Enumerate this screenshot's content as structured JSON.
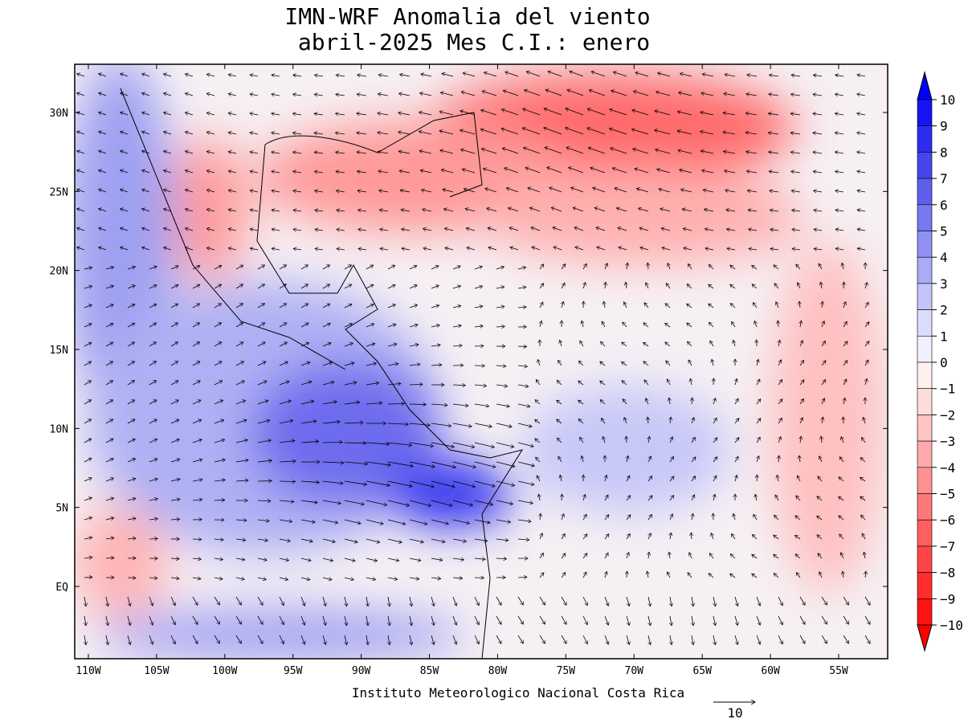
{
  "title": [
    "IMN-WRF Anomalia del viento",
    "abril-2025 Mes C.I.: enero"
  ],
  "map": {
    "lon_ticks": [
      {
        "value": -110,
        "label": "110W"
      },
      {
        "value": -105,
        "label": "105W"
      },
      {
        "value": -100,
        "label": "100W"
      },
      {
        "value": -95,
        "label": "95W"
      },
      {
        "value": -90,
        "label": "90W"
      },
      {
        "value": -85,
        "label": "85W"
      },
      {
        "value": -80,
        "label": "80W"
      },
      {
        "value": -75,
        "label": "75W"
      },
      {
        "value": -70,
        "label": "70W"
      },
      {
        "value": -65,
        "label": "65W"
      },
      {
        "value": -60,
        "label": "60W"
      },
      {
        "value": -55,
        "label": "55W"
      }
    ],
    "lat_ticks": [
      {
        "value": 30,
        "label": "30N"
      },
      {
        "value": 25,
        "label": "25N"
      },
      {
        "value": 20,
        "label": "20N"
      },
      {
        "value": 15,
        "label": "15N"
      },
      {
        "value": 10,
        "label": "10N"
      },
      {
        "value": 5,
        "label": "5N"
      },
      {
        "value": 0,
        "label": "EQ"
      }
    ]
  },
  "colorbar": {
    "ticks": [
      {
        "value": 10,
        "label": "10"
      },
      {
        "value": 9,
        "label": "9"
      },
      {
        "value": 8,
        "label": "8"
      },
      {
        "value": 7,
        "label": "7"
      },
      {
        "value": 6,
        "label": "6"
      },
      {
        "value": 5,
        "label": "5"
      },
      {
        "value": 4,
        "label": "4"
      },
      {
        "value": 3,
        "label": "3"
      },
      {
        "value": 2,
        "label": "2"
      },
      {
        "value": 1,
        "label": "1"
      },
      {
        "value": 0,
        "label": "0"
      },
      {
        "value": -1,
        "label": "−1"
      },
      {
        "value": -2,
        "label": "−2"
      },
      {
        "value": -3,
        "label": "−3"
      },
      {
        "value": -4,
        "label": "−4"
      },
      {
        "value": -5,
        "label": "−5"
      },
      {
        "value": -6,
        "label": "−6"
      },
      {
        "value": -7,
        "label": "−7"
      },
      {
        "value": -8,
        "label": "−8"
      },
      {
        "value": -9,
        "label": "−9"
      },
      {
        "value": -10,
        "label": "−10"
      }
    ],
    "colors": [
      "#0000ff",
      "#1414f5",
      "#2d2df0",
      "#4646ec",
      "#5f5fee",
      "#7878f0",
      "#9191f3",
      "#aaaaf6",
      "#c4c4f9",
      "#dcdcfc",
      "#f0f0ff",
      "#fff0f0",
      "#ffdcdc",
      "#ffc4c4",
      "#ffaaaa",
      "#ff9191",
      "#ff7878",
      "#ff5f5f",
      "#ff4646",
      "#ff2d2d",
      "#ff1414",
      "#ff0000"
    ]
  },
  "footer": "Instituto Meteorologico Nacional Costa Rica",
  "reference_vector": "10"
}
